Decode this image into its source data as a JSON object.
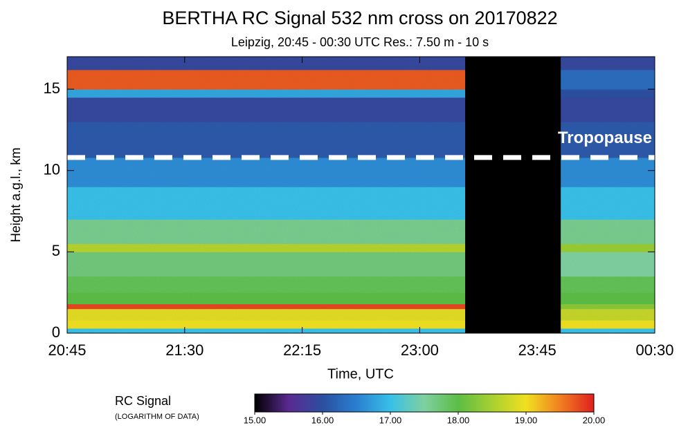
{
  "chart_data": {
    "type": "heatmap",
    "title": "BERTHA RC Signal 532 nm cross on 20170822",
    "subtitle": "Leipzig, 20:45 - 00:30 UTC Res.:  7.50 m -  10 s",
    "x_label": "Time, UTC",
    "y_label": "Height a.g.l., km",
    "x_edges": [
      20.75,
      23.29,
      23.9,
      24.5
    ],
    "y_edges": [
      0,
      0.3,
      0.8,
      1.5,
      1.8,
      2.5,
      3.5,
      5,
      5.5,
      7,
      9,
      10.8,
      13,
      14.5,
      15,
      16.2,
      17
    ],
    "values": [
      [
        17.0,
        null,
        17.0
      ],
      [
        19.0,
        null,
        19.0
      ],
      [
        18.9,
        null,
        18.7
      ],
      [
        19.8,
        null,
        18.3
      ],
      [
        18.0,
        null,
        18.0
      ],
      [
        17.9,
        null,
        17.9
      ],
      [
        17.7,
        null,
        17.5
      ],
      [
        18.6,
        null,
        18.4
      ],
      [
        17.6,
        null,
        17.6
      ],
      [
        17.0,
        null,
        17.0
      ],
      [
        16.6,
        null,
        16.6
      ],
      [
        16.1,
        null,
        16.1
      ],
      [
        15.9,
        null,
        15.9
      ],
      [
        16.8,
        null,
        16.0
      ],
      [
        19.7,
        null,
        16.3
      ],
      [
        15.9,
        null,
        15.9
      ]
    ],
    "missing_color": "#000000",
    "xlim": [
      20.75,
      24.5
    ],
    "xticks": [
      {
        "value": 20.75,
        "label": "20:45"
      },
      {
        "value": 21.5,
        "label": "21:30"
      },
      {
        "value": 22.25,
        "label": "22:15"
      },
      {
        "value": 23,
        "label": "23:00"
      },
      {
        "value": 23.75,
        "label": "23:45"
      },
      {
        "value": 24.5,
        "label": "00:30"
      }
    ],
    "ylim": [
      0,
      17
    ],
    "yticks": [
      0,
      5,
      10,
      15
    ],
    "hlines": [
      {
        "y": 10.8,
        "label": "Tropopause",
        "color": "#ffffff"
      }
    ],
    "colorbar": {
      "label": "RC Signal",
      "sublabel": "(LOGARITHM OF DATA)",
      "clim": [
        15,
        20
      ],
      "ticks": [
        {
          "value": 15,
          "label": "15.00"
        },
        {
          "value": 16,
          "label": "16.00"
        },
        {
          "value": 17,
          "label": "17.00"
        },
        {
          "value": 18,
          "label": "18.00"
        },
        {
          "value": 19,
          "label": "19.00"
        },
        {
          "value": 20,
          "label": "20.00"
        }
      ]
    },
    "colormap": [
      "#000000",
      "#5a2a90",
      "#2c4fa0",
      "#2a7fd0",
      "#38c0e8",
      "#7fd0a0",
      "#5cbd45",
      "#a8d030",
      "#f0e020",
      "#f08020",
      "#e02020"
    ]
  }
}
